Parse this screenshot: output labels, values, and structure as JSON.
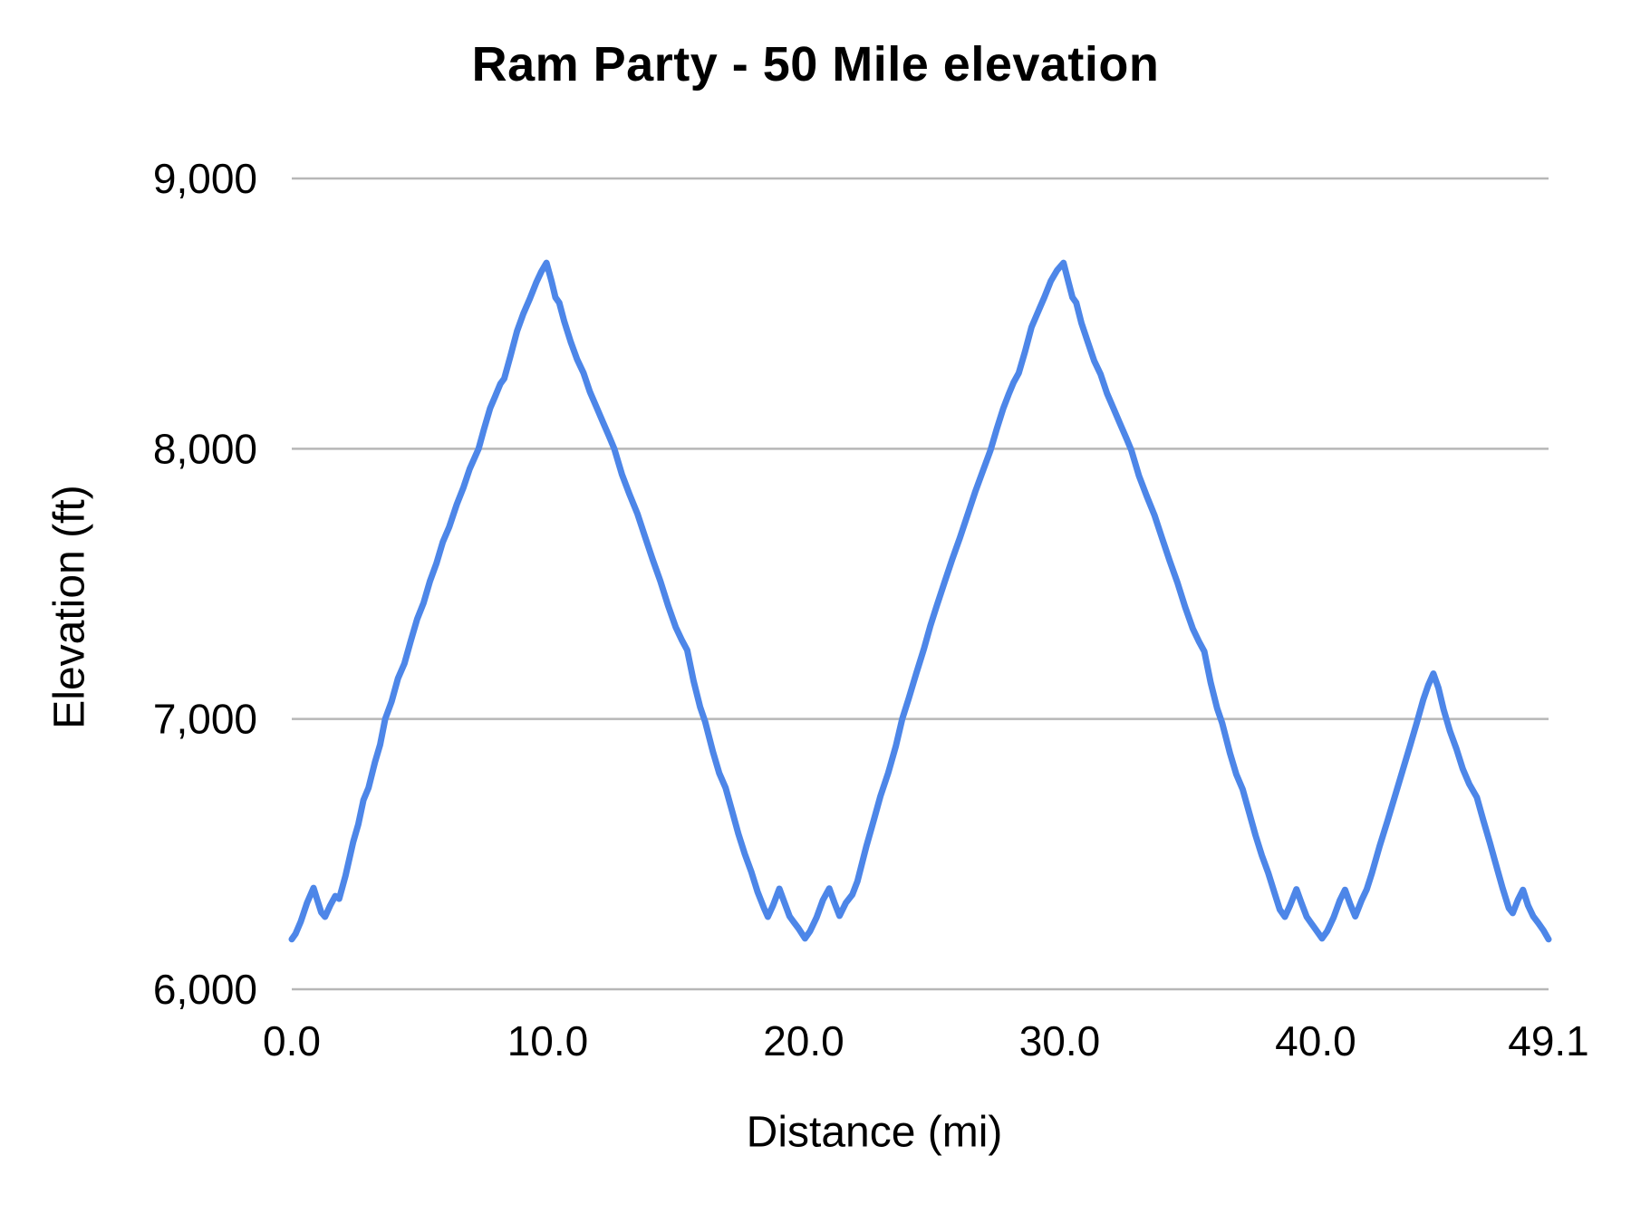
{
  "chart_data": {
    "type": "line",
    "title": "Ram Party - 50 Mile elevation",
    "xlabel": "Distance (mi)",
    "ylabel": "Elevation (ft)",
    "xlim": [
      0,
      49.1
    ],
    "ylim": [
      6000,
      9000
    ],
    "x_tick_values": [
      0,
      10,
      20,
      30,
      40,
      49.1
    ],
    "x_tick_labels": [
      "0.0",
      "10.0",
      "20.0",
      "30.0",
      "40.0",
      "49.1"
    ],
    "y_tick_values": [
      6000,
      7000,
      8000,
      9000
    ],
    "y_tick_labels": [
      "6,000",
      "7,000",
      "8,000",
      "9,000"
    ],
    "grid": "horizontal-only",
    "legend": "none",
    "colors": {
      "line": "#4d86e8",
      "gridline": "#b7b7b7",
      "text": "#000000",
      "background": "#ffffff"
    },
    "line_width": 7,
    "series": [
      {
        "name": "Elevation",
        "points": [
          [
            0.0,
            6185
          ],
          [
            0.15,
            6205
          ],
          [
            0.35,
            6250
          ],
          [
            0.6,
            6320
          ],
          [
            0.85,
            6375
          ],
          [
            1.0,
            6330
          ],
          [
            1.15,
            6285
          ],
          [
            1.3,
            6268
          ],
          [
            1.5,
            6310
          ],
          [
            1.7,
            6345
          ],
          [
            1.85,
            6335
          ],
          [
            2.1,
            6420
          ],
          [
            2.4,
            6545
          ],
          [
            2.6,
            6610
          ],
          [
            2.8,
            6700
          ],
          [
            3.0,
            6745
          ],
          [
            3.25,
            6840
          ],
          [
            3.45,
            6905
          ],
          [
            3.65,
            7000
          ],
          [
            3.9,
            7065
          ],
          [
            4.15,
            7150
          ],
          [
            4.4,
            7205
          ],
          [
            4.65,
            7290
          ],
          [
            4.9,
            7370
          ],
          [
            5.15,
            7430
          ],
          [
            5.4,
            7510
          ],
          [
            5.65,
            7575
          ],
          [
            5.9,
            7655
          ],
          [
            6.15,
            7710
          ],
          [
            6.45,
            7795
          ],
          [
            6.7,
            7855
          ],
          [
            6.95,
            7925
          ],
          [
            7.3,
            8000
          ],
          [
            7.5,
            8070
          ],
          [
            7.75,
            8150
          ],
          [
            7.95,
            8195
          ],
          [
            8.15,
            8240
          ],
          [
            8.3,
            8260
          ],
          [
            8.55,
            8345
          ],
          [
            8.8,
            8435
          ],
          [
            9.05,
            8500
          ],
          [
            9.3,
            8555
          ],
          [
            9.55,
            8615
          ],
          [
            9.75,
            8655
          ],
          [
            9.95,
            8688
          ],
          [
            10.15,
            8620
          ],
          [
            10.3,
            8560
          ],
          [
            10.45,
            8540
          ],
          [
            10.65,
            8470
          ],
          [
            10.9,
            8395
          ],
          [
            11.15,
            8330
          ],
          [
            11.4,
            8280
          ],
          [
            11.65,
            8210
          ],
          [
            11.9,
            8155
          ],
          [
            12.15,
            8100
          ],
          [
            12.4,
            8045
          ],
          [
            12.6,
            8000
          ],
          [
            12.9,
            7905
          ],
          [
            13.2,
            7830
          ],
          [
            13.5,
            7760
          ],
          [
            13.8,
            7675
          ],
          [
            14.1,
            7590
          ],
          [
            14.4,
            7510
          ],
          [
            14.7,
            7420
          ],
          [
            15.0,
            7340
          ],
          [
            15.25,
            7290
          ],
          [
            15.45,
            7255
          ],
          [
            15.7,
            7140
          ],
          [
            15.95,
            7045
          ],
          [
            16.15,
            6990
          ],
          [
            16.45,
            6880
          ],
          [
            16.7,
            6800
          ],
          [
            16.95,
            6745
          ],
          [
            17.2,
            6660
          ],
          [
            17.45,
            6575
          ],
          [
            17.7,
            6500
          ],
          [
            17.95,
            6435
          ],
          [
            18.2,
            6360
          ],
          [
            18.45,
            6300
          ],
          [
            18.6,
            6268
          ],
          [
            18.8,
            6310
          ],
          [
            19.05,
            6372
          ],
          [
            19.25,
            6320
          ],
          [
            19.45,
            6270
          ],
          [
            19.6,
            6250
          ],
          [
            19.8,
            6225
          ],
          [
            20.05,
            6188
          ],
          [
            20.25,
            6215
          ],
          [
            20.5,
            6265
          ],
          [
            20.75,
            6330
          ],
          [
            21.0,
            6373
          ],
          [
            21.2,
            6320
          ],
          [
            21.4,
            6272
          ],
          [
            21.65,
            6320
          ],
          [
            21.9,
            6350
          ],
          [
            22.1,
            6400
          ],
          [
            22.45,
            6530
          ],
          [
            22.75,
            6630
          ],
          [
            23.0,
            6715
          ],
          [
            23.3,
            6800
          ],
          [
            23.6,
            6900
          ],
          [
            23.85,
            7000
          ],
          [
            24.1,
            7075
          ],
          [
            24.4,
            7170
          ],
          [
            24.7,
            7260
          ],
          [
            24.95,
            7345
          ],
          [
            25.2,
            7420
          ],
          [
            25.5,
            7505
          ],
          [
            25.8,
            7590
          ],
          [
            26.1,
            7670
          ],
          [
            26.4,
            7755
          ],
          [
            26.7,
            7840
          ],
          [
            26.95,
            7905
          ],
          [
            27.3,
            7995
          ],
          [
            27.55,
            8075
          ],
          [
            27.8,
            8150
          ],
          [
            28.0,
            8200
          ],
          [
            28.2,
            8245
          ],
          [
            28.4,
            8280
          ],
          [
            28.65,
            8360
          ],
          [
            28.9,
            8450
          ],
          [
            29.15,
            8505
          ],
          [
            29.4,
            8560
          ],
          [
            29.65,
            8620
          ],
          [
            29.9,
            8660
          ],
          [
            30.15,
            8688
          ],
          [
            30.35,
            8615
          ],
          [
            30.5,
            8560
          ],
          [
            30.65,
            8540
          ],
          [
            30.85,
            8465
          ],
          [
            31.1,
            8395
          ],
          [
            31.35,
            8325
          ],
          [
            31.6,
            8275
          ],
          [
            31.85,
            8205
          ],
          [
            32.1,
            8150
          ],
          [
            32.35,
            8095
          ],
          [
            32.6,
            8040
          ],
          [
            32.8,
            7995
          ],
          [
            33.1,
            7900
          ],
          [
            33.4,
            7825
          ],
          [
            33.7,
            7755
          ],
          [
            34.0,
            7670
          ],
          [
            34.3,
            7585
          ],
          [
            34.6,
            7505
          ],
          [
            34.9,
            7415
          ],
          [
            35.2,
            7335
          ],
          [
            35.45,
            7285
          ],
          [
            35.65,
            7250
          ],
          [
            35.9,
            7135
          ],
          [
            36.15,
            7040
          ],
          [
            36.35,
            6985
          ],
          [
            36.65,
            6875
          ],
          [
            36.9,
            6795
          ],
          [
            37.15,
            6740
          ],
          [
            37.4,
            6655
          ],
          [
            37.65,
            6570
          ],
          [
            37.9,
            6495
          ],
          [
            38.15,
            6430
          ],
          [
            38.4,
            6355
          ],
          [
            38.6,
            6295
          ],
          [
            38.8,
            6268
          ],
          [
            39.0,
            6310
          ],
          [
            39.25,
            6370
          ],
          [
            39.45,
            6318
          ],
          [
            39.65,
            6268
          ],
          [
            39.8,
            6248
          ],
          [
            40.0,
            6222
          ],
          [
            40.25,
            6188
          ],
          [
            40.45,
            6215
          ],
          [
            40.7,
            6265
          ],
          [
            40.95,
            6330
          ],
          [
            41.15,
            6368
          ],
          [
            41.35,
            6315
          ],
          [
            41.55,
            6270
          ],
          [
            41.8,
            6330
          ],
          [
            42.0,
            6370
          ],
          [
            42.2,
            6430
          ],
          [
            42.5,
            6530
          ],
          [
            42.8,
            6620
          ],
          [
            43.1,
            6715
          ],
          [
            43.4,
            6810
          ],
          [
            43.7,
            6905
          ],
          [
            43.95,
            6985
          ],
          [
            44.2,
            7070
          ],
          [
            44.4,
            7125
          ],
          [
            44.6,
            7168
          ],
          [
            44.8,
            7115
          ],
          [
            45.0,
            7035
          ],
          [
            45.25,
            6955
          ],
          [
            45.5,
            6890
          ],
          [
            45.75,
            6815
          ],
          [
            46.0,
            6760
          ],
          [
            46.3,
            6710
          ],
          [
            46.55,
            6625
          ],
          [
            46.8,
            6545
          ],
          [
            47.05,
            6460
          ],
          [
            47.3,
            6375
          ],
          [
            47.55,
            6300
          ],
          [
            47.7,
            6282
          ],
          [
            47.9,
            6330
          ],
          [
            48.1,
            6368
          ],
          [
            48.3,
            6310
          ],
          [
            48.5,
            6270
          ],
          [
            48.7,
            6245
          ],
          [
            48.9,
            6218
          ],
          [
            49.1,
            6185
          ]
        ]
      }
    ]
  }
}
